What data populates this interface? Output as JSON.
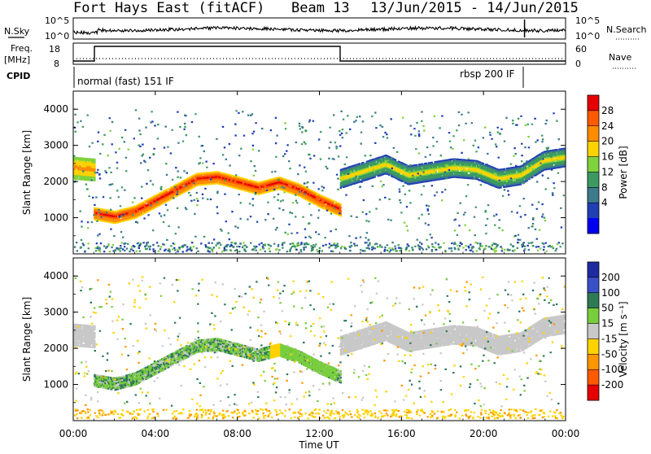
{
  "header": {
    "station": "Fort Hays East (fitACF)",
    "beam": "Beam 13",
    "date_range": "13/Jun/2015 - 14/Jun/2015"
  },
  "info_panels": {
    "nsky_label": "N.Sky",
    "nsky_ticks": [
      "10^5",
      "10^0"
    ],
    "nsearch_label": "N.Search",
    "nsearch_ticks": [
      "10^5",
      "10^0"
    ],
    "freq_label": "Freq.",
    "freq_unit": "[MHz]",
    "freq_ticks": [
      "18",
      "8"
    ],
    "nave_label": "Nave",
    "nave_ticks": [
      "60",
      "0"
    ],
    "cpid_label": "CPID",
    "cpid_modes": [
      "normal (fast) 151 IF",
      "rbsp 200 IF"
    ]
  },
  "x_ticks": [
    "00:00",
    "04:00",
    "08:00",
    "12:00",
    "16:00",
    "20:00",
    "00:00"
  ],
  "xlabel": "Time UT",
  "ylabel": "Slant Range [km]",
  "y_ticks": [
    "1000",
    "2000",
    "3000",
    "4000"
  ],
  "power_colorbar": {
    "label": "Power [dB]",
    "ticks": [
      "28",
      "24",
      "20",
      "16",
      "12",
      "8",
      "4"
    ],
    "colors": [
      "#e60000",
      "#ff5a00",
      "#ff8c00",
      "#ffd200",
      "#7fd23c",
      "#3c9a60",
      "#3c7a8c",
      "#1f3fb4",
      "#0000f0"
    ]
  },
  "velocity_colorbar": {
    "label": "Velocity [m s⁻¹]",
    "ticks": [
      "200",
      "100",
      "50",
      "15",
      "-15",
      "-50",
      "-100",
      "-200"
    ],
    "colors": [
      "#1e2aa0",
      "#3a50c8",
      "#2e7a55",
      "#78cd3c",
      "#c8c8c8",
      "#ffd200",
      "#ff9600",
      "#ff5a00",
      "#e60000"
    ]
  },
  "chart_data": [
    {
      "type": "heatmap",
      "panel": "power",
      "xlabel": "Time UT",
      "ylabel": "Slant Range [km]",
      "xlim_hours": [
        0,
        24
      ],
      "ylim_km": [
        0,
        4500
      ],
      "colorbar_label": "Power [dB]",
      "colorbar_range": [
        0,
        30
      ],
      "echo_regions": [
        {
          "t_start": 0.0,
          "t_end": 1.0,
          "range_center_km": [
            2400,
            2350
          ],
          "range_width_km": 600,
          "power_db": [
            14,
            22
          ]
        },
        {
          "t_start": 1.0,
          "t_end": 13.0,
          "range_center_km": [
            1150,
            1050,
            1200,
            1500,
            1800,
            2100,
            2150,
            2000,
            1850,
            2000,
            1800,
            1500,
            1250
          ],
          "range_width_km": 350,
          "power_db": [
            18,
            28
          ]
        },
        {
          "t_start": 13.0,
          "t_end": 24.0,
          "range_center_km": [
            2100,
            2300,
            2500,
            2200,
            2300,
            2400,
            2350,
            2100,
            2200,
            2600,
            2700
          ],
          "range_width_km": 500,
          "power_db": [
            6,
            20
          ]
        }
      ]
    },
    {
      "type": "heatmap",
      "panel": "velocity",
      "xlabel": "Time UT",
      "ylabel": "Slant Range [km]",
      "xlim_hours": [
        0,
        24
      ],
      "ylim_km": [
        0,
        4500
      ],
      "colorbar_label": "Velocity [m s⁻¹]",
      "colorbar_range": [
        -250,
        250
      ],
      "echo_regions": [
        {
          "t_start": 0.0,
          "t_end": 1.0,
          "range_center_km": [
            2400,
            2350
          ],
          "range_width_km": 600,
          "velocity_ms": [
            -15,
            15
          ]
        },
        {
          "t_start": 1.0,
          "t_end": 13.0,
          "range_center_km": [
            1150,
            1050,
            1200,
            1500,
            1800,
            2100,
            2150,
            2000,
            1850,
            2000,
            1800,
            1500,
            1250
          ],
          "range_width_km": 350,
          "velocity_ms": [
            -15,
            50
          ]
        },
        {
          "t_start": 13.0,
          "t_end": 24.0,
          "range_center_km": [
            2100,
            2300,
            2500,
            2200,
            2300,
            2400,
            2350,
            2100,
            2200,
            2600,
            2700
          ],
          "range_width_km": 500,
          "velocity_ms": [
            -15,
            15
          ]
        }
      ],
      "ground_scatter_band_km": [
        100,
        300
      ]
    }
  ]
}
